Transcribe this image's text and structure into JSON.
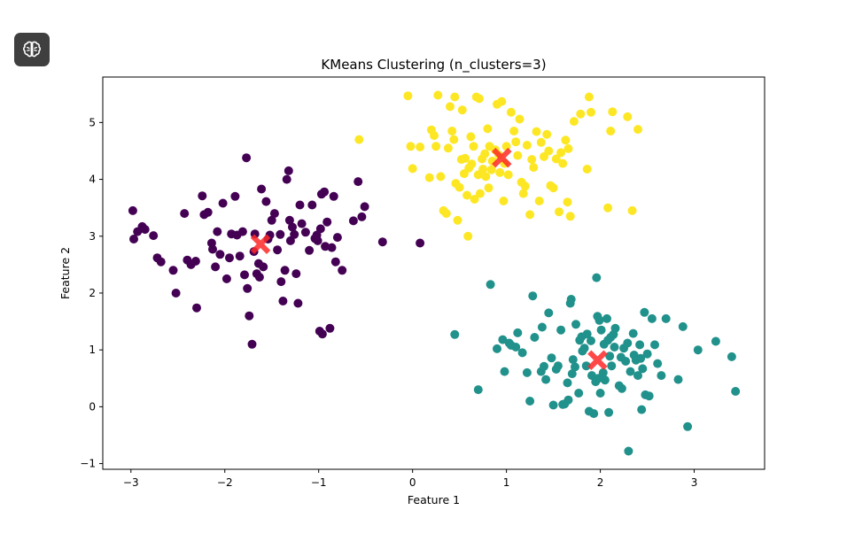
{
  "app_button": {
    "icon": "brain-icon",
    "color": "#3f3f3f"
  },
  "chart_data": {
    "type": "scatter",
    "title": "KMeans Clustering (n_clusters=3)",
    "xlabel": "Feature 1",
    "ylabel": "Feature 2",
    "xlim": [
      -3.3,
      3.75
    ],
    "ylim": [
      -1.1,
      5.8
    ],
    "xticks": [
      -3,
      -2,
      -1,
      0,
      1,
      2,
      3
    ],
    "yticks": [
      -1,
      0,
      1,
      2,
      3,
      4,
      5
    ],
    "xtick_labels": [
      "−3",
      "−2",
      "−1",
      "0",
      "1",
      "2",
      "3"
    ],
    "ytick_labels": [
      "−1",
      "0",
      "1",
      "2",
      "3",
      "4",
      "5"
    ],
    "grid": false,
    "legend": "none",
    "centroid_color": "#ff2a2a",
    "series": [
      {
        "color": "#440154",
        "centroid": [
          -1.62,
          2.86
        ],
        "points": [
          [
            -2.98,
            3.45
          ],
          [
            -2.93,
            3.08
          ],
          [
            -2.88,
            3.17
          ],
          [
            -2.97,
            2.95
          ],
          [
            -2.85,
            3.12
          ],
          [
            -2.76,
            3.01
          ],
          [
            -2.72,
            2.62
          ],
          [
            -2.68,
            2.55
          ],
          [
            -2.55,
            2.4
          ],
          [
            -2.52,
            2.0
          ],
          [
            -2.43,
            3.4
          ],
          [
            -2.4,
            2.58
          ],
          [
            -2.36,
            2.5
          ],
          [
            -2.31,
            2.56
          ],
          [
            -2.3,
            1.74
          ],
          [
            -2.24,
            3.71
          ],
          [
            -2.22,
            3.38
          ],
          [
            -2.18,
            3.42
          ],
          [
            -2.14,
            2.88
          ],
          [
            -2.13,
            2.77
          ],
          [
            -2.1,
            2.46
          ],
          [
            -2.08,
            3.08
          ],
          [
            -2.05,
            2.68
          ],
          [
            -2.02,
            3.58
          ],
          [
            -1.98,
            2.25
          ],
          [
            -1.95,
            2.62
          ],
          [
            -1.93,
            3.04
          ],
          [
            -1.89,
            3.7
          ],
          [
            -1.87,
            3.02
          ],
          [
            -1.84,
            2.65
          ],
          [
            -1.81,
            3.08
          ],
          [
            -1.79,
            2.32
          ],
          [
            -1.77,
            4.38
          ],
          [
            -1.76,
            2.08
          ],
          [
            -1.74,
            1.6
          ],
          [
            -1.71,
            1.1
          ],
          [
            -1.69,
            2.73
          ],
          [
            -1.68,
            3.04
          ],
          [
            -1.66,
            2.34
          ],
          [
            -1.64,
            2.52
          ],
          [
            -1.63,
            2.28
          ],
          [
            -1.61,
            3.83
          ],
          [
            -1.59,
            2.46
          ],
          [
            -1.56,
            3.61
          ],
          [
            -1.54,
            2.95
          ],
          [
            -1.52,
            3.02
          ],
          [
            -1.5,
            3.28
          ],
          [
            -1.47,
            3.4
          ],
          [
            -1.44,
            2.76
          ],
          [
            -1.41,
            3.03
          ],
          [
            -1.4,
            2.2
          ],
          [
            -1.38,
            1.86
          ],
          [
            -1.36,
            2.4
          ],
          [
            -1.34,
            4.0
          ],
          [
            -1.32,
            4.15
          ],
          [
            -1.31,
            3.28
          ],
          [
            -1.3,
            2.92
          ],
          [
            -1.28,
            3.16
          ],
          [
            -1.26,
            3.03
          ],
          [
            -1.24,
            2.34
          ],
          [
            -1.22,
            1.82
          ],
          [
            -1.2,
            3.55
          ],
          [
            -1.18,
            3.22
          ],
          [
            -1.14,
            3.07
          ],
          [
            -1.1,
            2.75
          ],
          [
            -1.07,
            3.55
          ],
          [
            -1.04,
            2.96
          ],
          [
            -1.02,
            3.02
          ],
          [
            -1.01,
            2.92
          ],
          [
            -0.99,
            1.33
          ],
          [
            -0.98,
            3.13
          ],
          [
            -0.97,
            3.74
          ],
          [
            -0.96,
            1.28
          ],
          [
            -0.94,
            3.78
          ],
          [
            -0.93,
            2.82
          ],
          [
            -0.91,
            3.25
          ],
          [
            -0.88,
            1.38
          ],
          [
            -0.86,
            2.8
          ],
          [
            -0.84,
            3.7
          ],
          [
            -0.82,
            2.55
          ],
          [
            -0.8,
            2.98
          ],
          [
            -0.75,
            2.4
          ],
          [
            -0.63,
            3.27
          ],
          [
            -0.58,
            3.96
          ],
          [
            -0.54,
            3.34
          ],
          [
            -0.51,
            3.52
          ],
          [
            -0.32,
            2.9
          ],
          [
            0.08,
            2.88
          ]
        ]
      },
      {
        "color": "#21918c",
        "centroid": [
          1.97,
          0.82
        ],
        "points": [
          [
            0.45,
            1.27
          ],
          [
            0.7,
            0.3
          ],
          [
            0.83,
            2.15
          ],
          [
            0.9,
            1.02
          ],
          [
            0.96,
            1.18
          ],
          [
            0.98,
            0.62
          ],
          [
            1.03,
            1.12
          ],
          [
            1.05,
            1.08
          ],
          [
            1.1,
            1.05
          ],
          [
            1.12,
            1.3
          ],
          [
            1.17,
            0.95
          ],
          [
            1.22,
            0.6
          ],
          [
            1.25,
            0.1
          ],
          [
            1.28,
            1.95
          ],
          [
            1.3,
            1.22
          ],
          [
            1.37,
            0.62
          ],
          [
            1.38,
            1.4
          ],
          [
            1.4,
            0.71
          ],
          [
            1.42,
            0.48
          ],
          [
            1.45,
            1.65
          ],
          [
            1.48,
            0.86
          ],
          [
            1.5,
            0.03
          ],
          [
            1.53,
            0.66
          ],
          [
            1.55,
            0.72
          ],
          [
            1.58,
            1.35
          ],
          [
            1.6,
            0.04
          ],
          [
            1.62,
            0.05
          ],
          [
            1.65,
            0.42
          ],
          [
            1.66,
            0.12
          ],
          [
            1.68,
            1.82
          ],
          [
            1.69,
            1.89
          ],
          [
            1.7,
            0.58
          ],
          [
            1.71,
            0.83
          ],
          [
            1.73,
            0.7
          ],
          [
            1.74,
            1.45
          ],
          [
            1.77,
            0.24
          ],
          [
            1.78,
            1.17
          ],
          [
            1.8,
            1.23
          ],
          [
            1.81,
            0.98
          ],
          [
            1.83,
            1.03
          ],
          [
            1.85,
            0.72
          ],
          [
            1.86,
            1.28
          ],
          [
            1.88,
            -0.08
          ],
          [
            1.9,
            1.16
          ],
          [
            1.91,
            0.55
          ],
          [
            1.93,
            -0.12
          ],
          [
            1.95,
            0.44
          ],
          [
            1.96,
            2.27
          ],
          [
            1.97,
            1.59
          ],
          [
            1.98,
            0.5
          ],
          [
            1.99,
            1.52
          ],
          [
            2.0,
            0.24
          ],
          [
            2.01,
            1.35
          ],
          [
            2.03,
            0.6
          ],
          [
            2.04,
            1.1
          ],
          [
            2.05,
            0.47
          ],
          [
            2.07,
            1.55
          ],
          [
            2.08,
            1.17
          ],
          [
            2.09,
            -0.1
          ],
          [
            2.1,
            0.89
          ],
          [
            2.11,
            1.22
          ],
          [
            2.12,
            0.72
          ],
          [
            2.14,
            1.27
          ],
          [
            2.15,
            1.05
          ],
          [
            2.16,
            1.38
          ],
          [
            2.2,
            0.37
          ],
          [
            2.22,
            0.87
          ],
          [
            2.23,
            0.32
          ],
          [
            2.25,
            1.03
          ],
          [
            2.27,
            0.8
          ],
          [
            2.29,
            1.12
          ],
          [
            2.3,
            -0.78
          ],
          [
            2.32,
            0.62
          ],
          [
            2.35,
            1.29
          ],
          [
            2.36,
            0.91
          ],
          [
            2.38,
            0.82
          ],
          [
            2.4,
            0.55
          ],
          [
            2.42,
            1.09
          ],
          [
            2.43,
            0.85
          ],
          [
            2.44,
            -0.05
          ],
          [
            2.45,
            0.67
          ],
          [
            2.47,
            1.66
          ],
          [
            2.48,
            0.21
          ],
          [
            2.5,
            0.93
          ],
          [
            2.52,
            0.19
          ],
          [
            2.55,
            1.55
          ],
          [
            2.58,
            1.09
          ],
          [
            2.61,
            0.76
          ],
          [
            2.65,
            0.55
          ],
          [
            2.7,
            1.55
          ],
          [
            2.83,
            0.48
          ],
          [
            2.88,
            1.41
          ],
          [
            2.93,
            -0.35
          ],
          [
            3.04,
            1.0
          ],
          [
            3.23,
            1.15
          ],
          [
            3.4,
            0.88
          ],
          [
            3.44,
            0.27
          ]
        ]
      },
      {
        "color": "#fde725",
        "centroid": [
          0.95,
          4.38
        ],
        "points": [
          [
            -0.05,
            5.47
          ],
          [
            -0.02,
            4.58
          ],
          [
            0.0,
            4.19
          ],
          [
            0.08,
            4.57
          ],
          [
            0.18,
            4.03
          ],
          [
            0.2,
            4.87
          ],
          [
            0.23,
            4.77
          ],
          [
            0.25,
            4.58
          ],
          [
            0.27,
            5.48
          ],
          [
            0.3,
            4.05
          ],
          [
            0.33,
            3.45
          ],
          [
            0.36,
            3.4
          ],
          [
            0.38,
            4.55
          ],
          [
            0.4,
            5.28
          ],
          [
            0.42,
            4.85
          ],
          [
            0.44,
            4.7
          ],
          [
            0.45,
            5.45
          ],
          [
            0.46,
            3.93
          ],
          [
            0.48,
            3.28
          ],
          [
            0.5,
            3.86
          ],
          [
            0.52,
            4.35
          ],
          [
            0.53,
            5.22
          ],
          [
            0.55,
            4.1
          ],
          [
            0.56,
            4.37
          ],
          [
            0.58,
            3.72
          ],
          [
            0.59,
            3.0
          ],
          [
            0.6,
            4.2
          ],
          [
            0.62,
            4.75
          ],
          [
            0.63,
            4.27
          ],
          [
            0.65,
            4.58
          ],
          [
            0.66,
            3.65
          ],
          [
            0.68,
            5.45
          ],
          [
            0.7,
            4.08
          ],
          [
            0.71,
            5.42
          ],
          [
            0.72,
            3.75
          ],
          [
            0.74,
            4.36
          ],
          [
            0.75,
            4.18
          ],
          [
            0.77,
            4.45
          ],
          [
            0.78,
            4.05
          ],
          [
            0.8,
            4.89
          ],
          [
            0.81,
            3.85
          ],
          [
            0.82,
            4.58
          ],
          [
            0.84,
            4.17
          ],
          [
            0.85,
            4.32
          ],
          [
            0.88,
            4.52
          ],
          [
            0.9,
            5.32
          ],
          [
            0.92,
            4.43
          ],
          [
            0.93,
            4.12
          ],
          [
            0.95,
            5.37
          ],
          [
            0.97,
            3.62
          ],
          [
            0.98,
            4.28
          ],
          [
            1.0,
            4.58
          ],
          [
            1.02,
            4.08
          ],
          [
            1.05,
            5.18
          ],
          [
            1.08,
            4.85
          ],
          [
            1.1,
            4.66
          ],
          [
            1.12,
            4.42
          ],
          [
            1.14,
            5.06
          ],
          [
            1.16,
            3.95
          ],
          [
            1.18,
            3.75
          ],
          [
            1.2,
            3.88
          ],
          [
            1.22,
            4.6
          ],
          [
            1.25,
            3.38
          ],
          [
            1.27,
            4.35
          ],
          [
            1.29,
            4.21
          ],
          [
            1.32,
            4.84
          ],
          [
            1.35,
            3.62
          ],
          [
            1.37,
            4.65
          ],
          [
            1.4,
            4.4
          ],
          [
            1.43,
            4.79
          ],
          [
            1.45,
            4.5
          ],
          [
            1.47,
            3.89
          ],
          [
            1.5,
            3.85
          ],
          [
            1.53,
            4.36
          ],
          [
            1.56,
            3.43
          ],
          [
            1.58,
            4.47
          ],
          [
            1.6,
            4.28
          ],
          [
            1.63,
            4.69
          ],
          [
            1.65,
            3.6
          ],
          [
            1.66,
            4.54
          ],
          [
            1.68,
            3.35
          ],
          [
            1.72,
            5.02
          ],
          [
            1.79,
            5.15
          ],
          [
            1.86,
            4.18
          ],
          [
            1.88,
            5.45
          ],
          [
            1.9,
            5.18
          ],
          [
            2.11,
            4.85
          ],
          [
            2.13,
            5.19
          ],
          [
            2.29,
            5.1
          ],
          [
            2.34,
            3.45
          ],
          [
            2.4,
            4.88
          ],
          [
            -0.57,
            4.7
          ],
          [
            2.08,
            3.5
          ]
        ]
      }
    ]
  }
}
